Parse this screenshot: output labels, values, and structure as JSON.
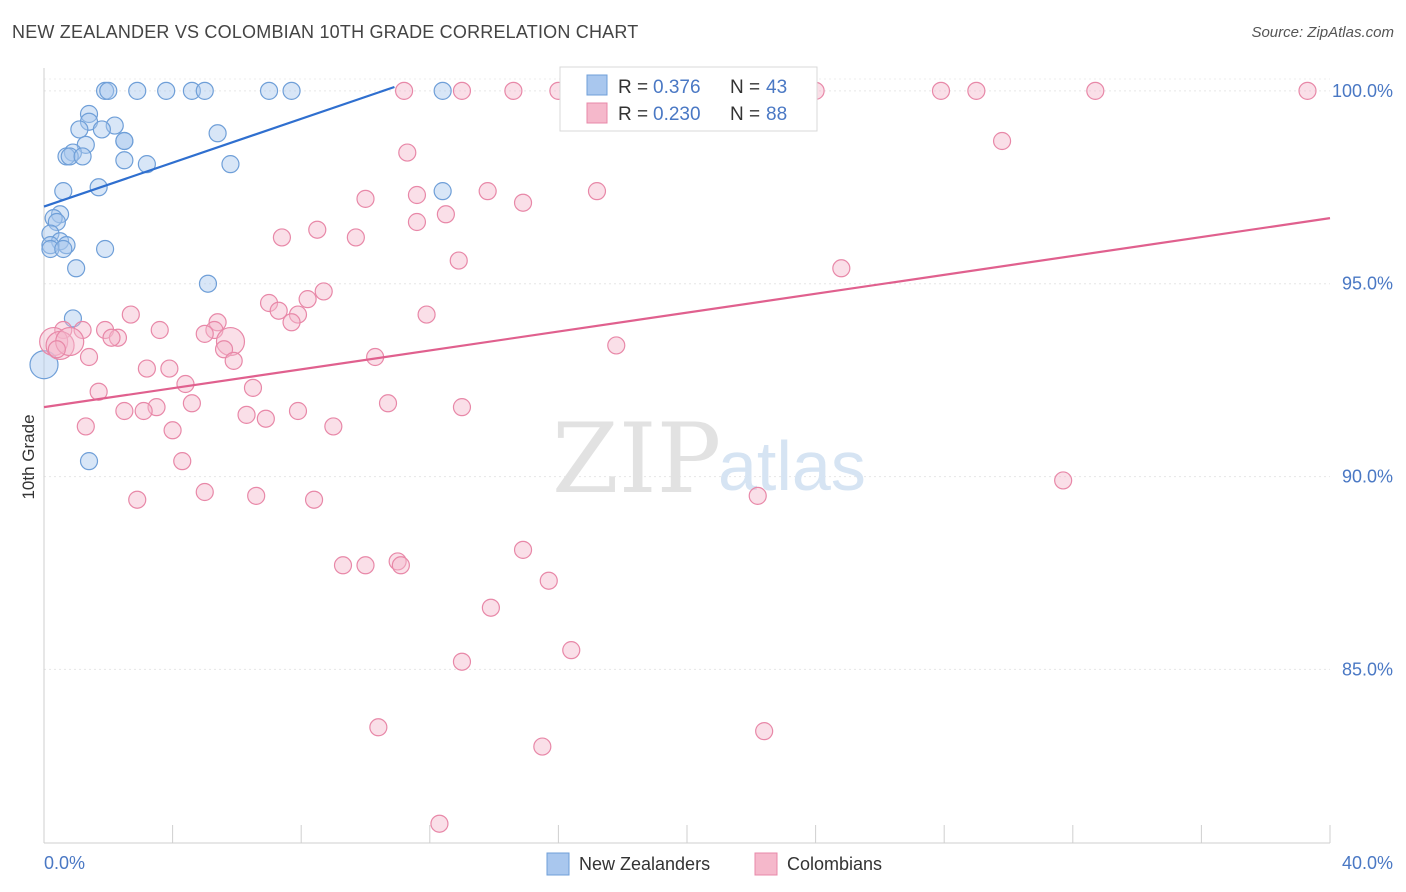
{
  "chart_data": {
    "type": "scatter",
    "title": "NEW ZEALANDER VS COLOMBIAN 10TH GRADE CORRELATION CHART",
    "source": "Source: ZipAtlas.com",
    "xlabel": "",
    "ylabel": "10th Grade",
    "xlim": [
      0,
      40
    ],
    "ylim": [
      80.5,
      100.8
    ],
    "x_tick_labels": [
      "0.0%",
      "40.0%"
    ],
    "y_ticks": [
      85,
      90,
      95,
      100
    ],
    "y_tick_labels": [
      "85.0%",
      "90.0%",
      "95.0%",
      "100.0%"
    ],
    "watermark": {
      "zip": "ZIP",
      "atlas": "atlas"
    },
    "legend": {
      "r_label": "R =",
      "n_label": "N =",
      "entries": [
        {
          "name": "New Zealanders",
          "r": "0.376",
          "n": "43",
          "color": "#a9c7ee",
          "stroke": "#6f9fd8"
        },
        {
          "name": "Colombians",
          "r": "0.230",
          "n": "88",
          "color": "#f5b8cb",
          "stroke": "#e888a8"
        }
      ]
    },
    "series": [
      {
        "name": "New Zealanders",
        "color": "#a9c7ee",
        "stroke": "#6f9fd8",
        "trend": {
          "x": [
            0.0,
            10.9
          ],
          "y": [
            97.0,
            100.1
          ],
          "color": "#2f6fcf"
        },
        "points": [
          [
            1.9,
            100.0
          ],
          [
            2.0,
            100.0
          ],
          [
            2.9,
            100.0
          ],
          [
            3.8,
            100.0
          ],
          [
            4.6,
            100.0
          ],
          [
            5.0,
            100.0
          ],
          [
            7.0,
            100.0
          ],
          [
            7.7,
            100.0
          ],
          [
            12.4,
            100.0
          ],
          [
            1.4,
            99.4
          ],
          [
            1.4,
            99.2
          ],
          [
            2.2,
            99.1
          ],
          [
            1.8,
            99.0
          ],
          [
            1.1,
            99.0
          ],
          [
            5.4,
            98.9
          ],
          [
            2.5,
            98.7
          ],
          [
            2.5,
            98.7
          ],
          [
            1.3,
            98.6
          ],
          [
            0.9,
            98.4
          ],
          [
            0.7,
            98.3
          ],
          [
            0.8,
            98.3
          ],
          [
            1.2,
            98.3
          ],
          [
            2.5,
            98.2
          ],
          [
            3.2,
            98.1
          ],
          [
            5.8,
            98.1
          ],
          [
            1.7,
            97.5
          ],
          [
            0.6,
            97.4
          ],
          [
            12.4,
            97.4
          ],
          [
            0.5,
            96.8
          ],
          [
            0.3,
            96.7
          ],
          [
            0.4,
            96.6
          ],
          [
            0.2,
            96.3
          ],
          [
            0.5,
            96.1
          ],
          [
            0.7,
            96.0
          ],
          [
            0.2,
            96.0
          ],
          [
            0.2,
            95.9
          ],
          [
            0.6,
            95.9
          ],
          [
            1.9,
            95.9
          ],
          [
            1.0,
            95.4
          ],
          [
            5.1,
            95.0
          ],
          [
            0.9,
            94.1
          ],
          [
            0.0,
            92.9
          ],
          [
            1.4,
            90.4
          ]
        ]
      },
      {
        "name": "Colombians",
        "color": "#f5b8cb",
        "stroke": "#e888a8",
        "trend": {
          "x": [
            0.0,
            40.0
          ],
          "y": [
            91.8,
            96.7
          ],
          "color": "#e0608e"
        },
        "points": [
          [
            11.2,
            100.0
          ],
          [
            13.0,
            100.0
          ],
          [
            14.6,
            100.0
          ],
          [
            16.0,
            100.0
          ],
          [
            19.0,
            100.0
          ],
          [
            24.0,
            100.0
          ],
          [
            27.9,
            100.0
          ],
          [
            29.0,
            100.0
          ],
          [
            32.7,
            100.0
          ],
          [
            39.3,
            100.0
          ],
          [
            29.8,
            98.7
          ],
          [
            11.3,
            98.4
          ],
          [
            17.2,
            97.4
          ],
          [
            13.8,
            97.4
          ],
          [
            10.0,
            97.2
          ],
          [
            11.6,
            97.3
          ],
          [
            14.9,
            97.1
          ],
          [
            12.5,
            96.8
          ],
          [
            11.6,
            96.6
          ],
          [
            8.5,
            96.4
          ],
          [
            7.4,
            96.2
          ],
          [
            9.7,
            96.2
          ],
          [
            12.9,
            95.6
          ],
          [
            24.8,
            95.4
          ],
          [
            8.7,
            94.8
          ],
          [
            7.0,
            94.5
          ],
          [
            8.2,
            94.6
          ],
          [
            7.3,
            94.3
          ],
          [
            7.9,
            94.2
          ],
          [
            11.9,
            94.2
          ],
          [
            2.7,
            94.2
          ],
          [
            7.7,
            94.0
          ],
          [
            5.4,
            94.0
          ],
          [
            1.2,
            93.8
          ],
          [
            3.6,
            93.8
          ],
          [
            5.3,
            93.8
          ],
          [
            5.0,
            93.7
          ],
          [
            1.9,
            93.8
          ],
          [
            2.3,
            93.6
          ],
          [
            2.1,
            93.6
          ],
          [
            0.6,
            93.8
          ],
          [
            5.8,
            93.5
          ],
          [
            0.3,
            93.5
          ],
          [
            0.5,
            93.4
          ],
          [
            0.8,
            93.5
          ],
          [
            17.8,
            93.4
          ],
          [
            0.4,
            93.3
          ],
          [
            5.6,
            93.3
          ],
          [
            10.3,
            93.1
          ],
          [
            1.4,
            93.1
          ],
          [
            5.9,
            93.0
          ],
          [
            3.2,
            92.8
          ],
          [
            3.9,
            92.8
          ],
          [
            4.4,
            92.4
          ],
          [
            6.5,
            92.3
          ],
          [
            1.7,
            92.2
          ],
          [
            10.7,
            91.9
          ],
          [
            13.0,
            91.8
          ],
          [
            4.6,
            91.9
          ],
          [
            3.5,
            91.8
          ],
          [
            3.1,
            91.7
          ],
          [
            2.5,
            91.7
          ],
          [
            7.9,
            91.7
          ],
          [
            6.3,
            91.6
          ],
          [
            6.9,
            91.5
          ],
          [
            9.0,
            91.3
          ],
          [
            1.3,
            91.3
          ],
          [
            4.0,
            91.2
          ],
          [
            4.3,
            90.4
          ],
          [
            31.7,
            89.9
          ],
          [
            5.0,
            89.6
          ],
          [
            6.6,
            89.5
          ],
          [
            8.4,
            89.4
          ],
          [
            2.9,
            89.4
          ],
          [
            22.2,
            89.5
          ],
          [
            14.9,
            88.1
          ],
          [
            11.0,
            87.8
          ],
          [
            11.1,
            87.7
          ],
          [
            9.3,
            87.7
          ],
          [
            10.0,
            87.7
          ],
          [
            15.7,
            87.3
          ],
          [
            13.9,
            86.6
          ],
          [
            16.4,
            85.5
          ],
          [
            13.0,
            85.2
          ],
          [
            10.4,
            83.5
          ],
          [
            22.4,
            83.4
          ],
          [
            15.5,
            83.0
          ],
          [
            12.3,
            81.0
          ]
        ]
      }
    ]
  }
}
